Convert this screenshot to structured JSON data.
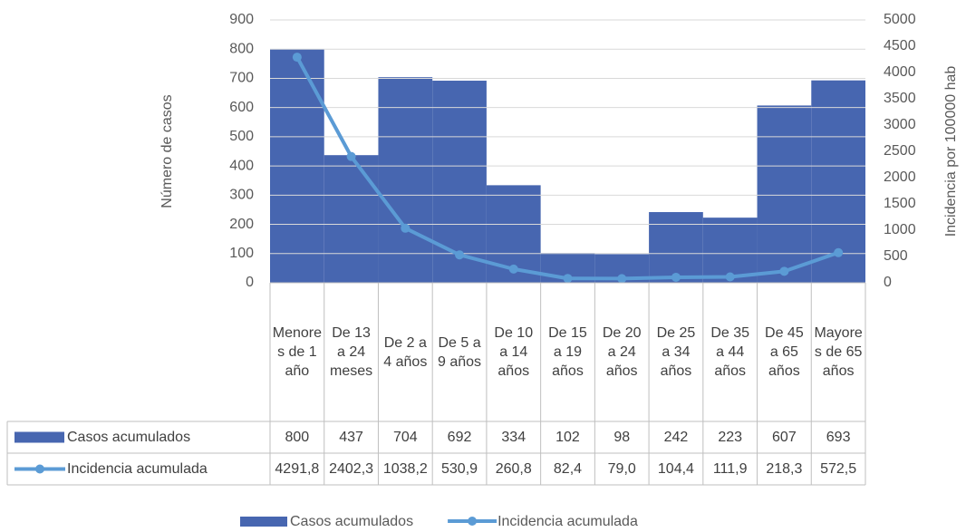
{
  "chart_data": {
    "type": "combo",
    "categories": [
      "Menores de 1 año",
      "De 13 a 24 meses",
      "De 2 a 4 años",
      "De 5 a 9 años",
      "De 10 a 14 años",
      "De 15 a 19 años",
      "De 20 a 24 años",
      "De 25 a 34 años",
      "De 35 a 44 años",
      "De 45 a 65 años",
      "Mayores de 65 años"
    ],
    "series": [
      {
        "name": "Casos acumulados",
        "type": "bar",
        "color": "#4766b0",
        "values": [
          800,
          437,
          704,
          692,
          334,
          102,
          98,
          242,
          223,
          607,
          693
        ]
      },
      {
        "name": "Incidencia acumulada",
        "type": "line",
        "axis": "y2",
        "color": "#5b9bd5",
        "values": [
          4291.8,
          2402.3,
          1038.2,
          530.9,
          260.8,
          82.4,
          79.0,
          104.4,
          111.9,
          218.3,
          572.5
        ],
        "value_labels": [
          "4291,8",
          "2402,3",
          "1038,2",
          "530,9",
          "260,8",
          "82,4",
          "79,0",
          "104,4",
          "111,9",
          "218,3",
          "572,5"
        ]
      }
    ],
    "ylabel": "Número de casos",
    "y2label": "Incidencia por 100000 hab",
    "ylim": [
      0,
      900
    ],
    "yticks": [
      0,
      100,
      200,
      300,
      400,
      500,
      600,
      700,
      800,
      900
    ],
    "y2lim": [
      0,
      5000
    ],
    "y2ticks": [
      0,
      500,
      1000,
      1500,
      2000,
      2500,
      3000,
      3500,
      4000,
      4500,
      5000
    ],
    "grid": true,
    "legend": "bottom",
    "data_table": true
  }
}
